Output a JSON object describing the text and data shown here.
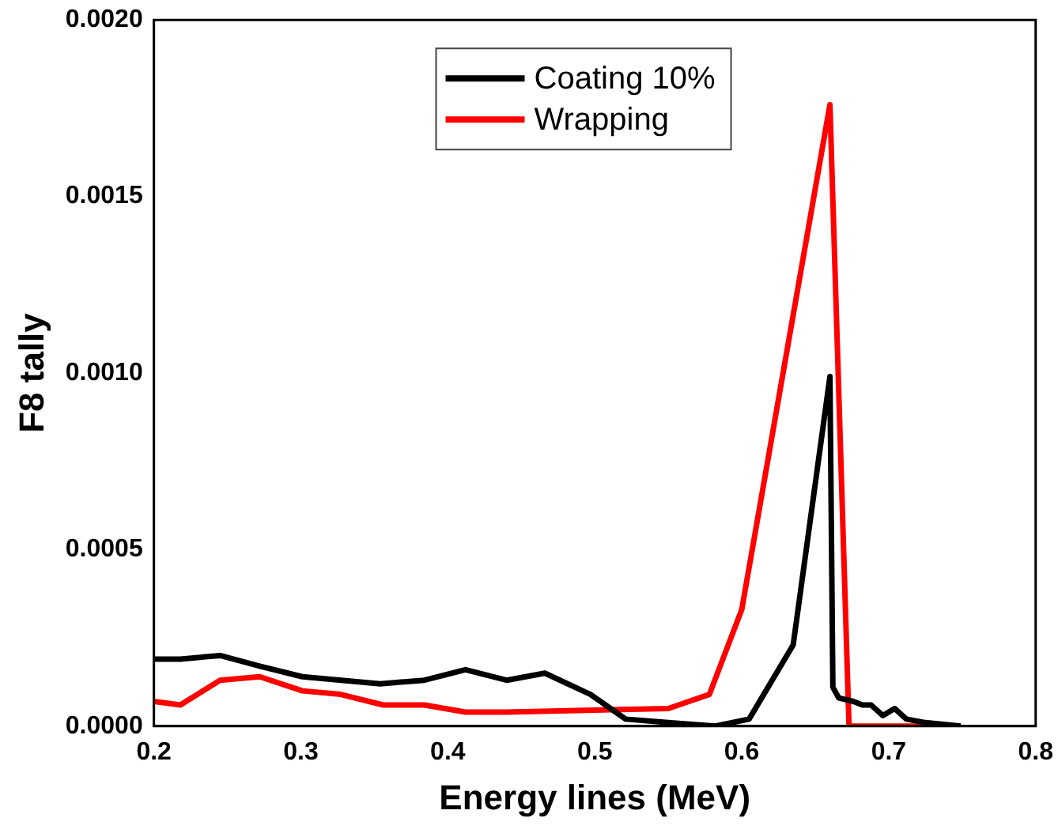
{
  "chart_data": {
    "type": "line",
    "xlabel": "Energy lines (MeV)",
    "ylabel": "F8 tally",
    "xlim": [
      0.2,
      0.8
    ],
    "xticks": [
      0.2,
      0.3,
      0.4,
      0.5,
      0.6,
      0.7,
      0.8
    ],
    "ylim": [
      0,
      0.002
    ],
    "yticks": [
      {
        "value": 0,
        "label": "0.0000"
      },
      {
        "value": 0.0005,
        "label": "0.0005"
      },
      {
        "value": 0.001,
        "label": "0.0010"
      },
      {
        "value": 0.0015,
        "label": "0.0015"
      },
      {
        "value": 0.002,
        "label": "0.0020"
      }
    ],
    "grid": false,
    "legend": "top",
    "marker": "none",
    "line_style": "solid",
    "series": [
      {
        "name": "Coating 10%",
        "color": "#000000",
        "x": [
          0.2,
          0.218,
          0.245,
          0.272,
          0.301,
          0.354,
          0.384,
          0.412,
          0.44,
          0.466,
          0.497,
          0.521,
          0.55,
          0.582,
          0.605,
          0.635,
          0.66,
          0.662,
          0.666,
          0.676,
          0.682,
          0.688,
          0.696,
          0.704,
          0.712,
          0.725,
          0.749
        ],
        "values": [
          0.00019,
          0.00019,
          0.0002,
          0.00017,
          0.00014,
          0.00012,
          0.00013,
          0.00016,
          0.00013,
          0.00015,
          9e-05,
          2e-05,
          1e-05,
          0,
          2e-05,
          0.00023,
          0.00099,
          0.00011,
          8e-05,
          7e-05,
          6e-05,
          6e-05,
          3e-05,
          5e-05,
          2e-05,
          1e-05,
          0
        ]
      },
      {
        "name": "Wrapping",
        "color": "#ff0000",
        "x": [
          0.2,
          0.218,
          0.245,
          0.272,
          0.301,
          0.327,
          0.356,
          0.384,
          0.412,
          0.44,
          0.55,
          0.578,
          0.6,
          0.66,
          0.673,
          0.749
        ],
        "values": [
          7e-05,
          6e-05,
          0.00013,
          0.00014,
          0.0001,
          9e-05,
          6e-05,
          6e-05,
          4e-05,
          4e-05,
          5e-05,
          9e-05,
          0.00033,
          0.00176,
          0,
          0
        ]
      }
    ]
  }
}
